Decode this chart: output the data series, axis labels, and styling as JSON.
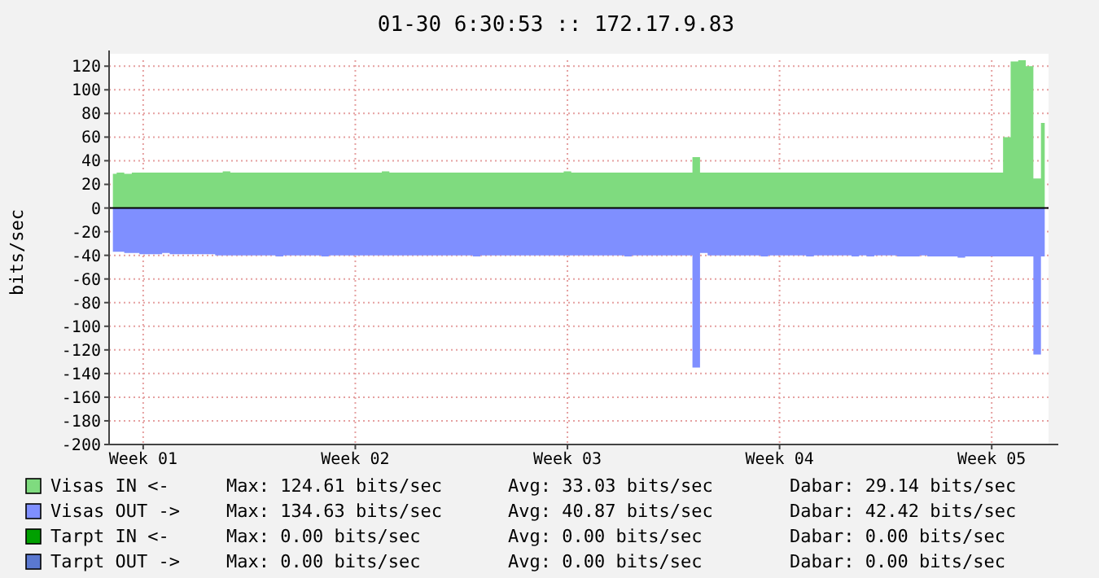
{
  "chart_data": {
    "type": "area",
    "title": "01-30 6:30:53 :: 172.17.9.83",
    "ylabel": "bits/sec",
    "categories": [
      null,
      null,
      null,
      null,
      "Week 01",
      null,
      null,
      null,
      null,
      null,
      null,
      null,
      null,
      null,
      null,
      null,
      null,
      null,
      null,
      null,
      null,
      null,
      null,
      null,
      null,
      null,
      null,
      null,
      null,
      null,
      null,
      null,
      "Week 02",
      null,
      null,
      null,
      null,
      null,
      null,
      null,
      null,
      null,
      null,
      null,
      null,
      null,
      null,
      null,
      null,
      null,
      null,
      null,
      null,
      null,
      null,
      null,
      null,
      null,
      null,
      null,
      "Week 03",
      null,
      null,
      null,
      null,
      null,
      null,
      null,
      null,
      null,
      null,
      null,
      null,
      null,
      null,
      null,
      null,
      null,
      null,
      null,
      null,
      null,
      null,
      null,
      null,
      null,
      null,
      null,
      "Week 04",
      null,
      null,
      null,
      null,
      null,
      null,
      null,
      null,
      null,
      null,
      null,
      null,
      null,
      null,
      null,
      null,
      null,
      null,
      null,
      null,
      null,
      null,
      null,
      null,
      null,
      null,
      null,
      "Week 05",
      null,
      null,
      null,
      null,
      null,
      null,
      null
    ],
    "ylim": [
      -200,
      125
    ],
    "yticks": [
      -200,
      -180,
      -160,
      -140,
      -120,
      -100,
      -80,
      -60,
      -40,
      -20,
      0,
      20,
      40,
      60,
      80,
      100,
      120
    ],
    "grid": true,
    "legend": "bottom",
    "ref_lines": [
      {
        "axis": "y",
        "value": 0,
        "color": "#000000"
      }
    ],
    "series": [
      {
        "name": "Visas IN <-",
        "color": "#7fdb7f",
        "values": [
          29,
          30,
          29,
          30,
          30,
          30,
          30,
          30,
          30,
          30,
          30,
          30,
          30,
          30,
          30,
          31,
          30,
          30,
          30,
          30,
          30,
          30,
          30,
          30,
          30,
          30,
          30,
          30,
          30,
          30,
          30,
          30,
          30,
          30,
          30,
          30,
          31,
          30,
          30,
          30,
          30,
          30,
          30,
          30,
          30,
          30,
          30,
          30,
          30,
          30,
          30,
          30,
          30,
          30,
          30,
          30,
          30,
          30,
          30,
          30,
          31,
          30,
          30,
          30,
          30,
          30,
          30,
          30,
          30,
          30,
          30,
          30,
          30,
          30,
          30,
          30,
          30,
          43,
          30,
          30,
          30,
          30,
          30,
          30,
          30,
          30,
          30,
          30,
          30,
          30,
          30,
          30,
          30,
          30,
          30,
          30,
          30,
          30,
          30,
          30,
          30,
          30,
          30,
          30,
          30,
          30,
          30,
          30,
          30,
          30,
          30,
          30,
          30,
          30,
          30,
          30,
          30,
          30,
          60,
          124,
          125,
          120,
          25,
          72
        ]
      },
      {
        "name": "Visas OUT ->",
        "color": "#7f8fff",
        "values": [
          -37,
          -37,
          -38,
          -38,
          -39,
          -39,
          -39,
          -38,
          -39,
          -39,
          -39,
          -39,
          -39,
          -39,
          -40,
          -40,
          -40,
          -40,
          -40,
          -40,
          -40,
          -40,
          -41,
          -40,
          -40,
          -40,
          -40,
          -40,
          -41,
          -40,
          -40,
          -40,
          -40,
          -40,
          -40,
          -40,
          -40,
          -40,
          -40,
          -40,
          -40,
          -40,
          -40,
          -40,
          -40,
          -40,
          -40,
          -40,
          -41,
          -40,
          -40,
          -40,
          -40,
          -40,
          -40,
          -40,
          -40,
          -40,
          -40,
          -40,
          -40,
          -40,
          -40,
          -40,
          -40,
          -40,
          -40,
          -40,
          -41,
          -40,
          -40,
          -40,
          -40,
          -40,
          -40,
          -40,
          -40,
          -135,
          -38,
          -40,
          -40,
          -40,
          -40,
          -40,
          -40,
          -40,
          -41,
          -40,
          -40,
          -40,
          -40,
          -40,
          -41,
          -40,
          -40,
          -40,
          -40,
          -40,
          -41,
          -40,
          -41,
          -40,
          -40,
          -40,
          -41,
          -41,
          -41,
          -40,
          -41,
          -41,
          -41,
          -41,
          -42,
          -41,
          -41,
          -41,
          -41,
          -41,
          -41,
          -41,
          -41,
          -41,
          -124,
          -41
        ]
      },
      {
        "name": "Tarpt IN <-",
        "color": "#00a000",
        "values": [
          null,
          null,
          null,
          null,
          null,
          null,
          null,
          null,
          null,
          null,
          null,
          null,
          null,
          null,
          null,
          null,
          null,
          null,
          null,
          null,
          null,
          null,
          null,
          null,
          null,
          null,
          null,
          null,
          null,
          null,
          null,
          null,
          null,
          null,
          null,
          null,
          null,
          null,
          null,
          null,
          null,
          null,
          null,
          null,
          null,
          null,
          null,
          null,
          null,
          null,
          null,
          null,
          null,
          null,
          null,
          null,
          null,
          null,
          null,
          null,
          null,
          null,
          null,
          null,
          null,
          null,
          null,
          null,
          null,
          null,
          null,
          null,
          null,
          null,
          null,
          null,
          null,
          null,
          null,
          null,
          null,
          null,
          null,
          null,
          null,
          null,
          null,
          null,
          null,
          null,
          null,
          null,
          null,
          null,
          null,
          null,
          null,
          null,
          null,
          null,
          null,
          null,
          null,
          null,
          null,
          null,
          null,
          null,
          null,
          null,
          null,
          null,
          null,
          null,
          null,
          null,
          null,
          null,
          null,
          null,
          null,
          null,
          null,
          null
        ]
      },
      {
        "name": "Tarpt OUT ->",
        "color": "#5a78d0",
        "values": [
          null,
          null,
          null,
          null,
          null,
          null,
          null,
          null,
          null,
          null,
          null,
          null,
          null,
          null,
          null,
          null,
          null,
          null,
          null,
          null,
          null,
          null,
          null,
          null,
          null,
          null,
          null,
          null,
          null,
          null,
          null,
          null,
          null,
          null,
          null,
          null,
          null,
          null,
          null,
          null,
          null,
          null,
          null,
          null,
          null,
          null,
          null,
          null,
          null,
          null,
          null,
          null,
          null,
          null,
          null,
          null,
          null,
          null,
          null,
          null,
          null,
          null,
          null,
          null,
          null,
          null,
          null,
          null,
          null,
          null,
          null,
          null,
          null,
          null,
          null,
          null,
          null,
          null,
          null,
          null,
          null,
          null,
          null,
          null,
          null,
          null,
          null,
          null,
          null,
          null,
          null,
          null,
          null,
          null,
          null,
          null,
          null,
          null,
          null,
          null,
          null,
          null,
          null,
          null,
          null,
          null,
          null,
          null,
          null,
          null,
          null,
          null,
          null,
          null,
          null,
          null,
          null,
          null,
          null,
          null,
          null,
          null,
          null,
          null
        ]
      }
    ],
    "annotations": [
      "Max: 124.61 bits/sec",
      "Avg: 33.03 bits/sec",
      "Dabar: 29.14 bits/sec",
      "Max: 134.63 bits/sec",
      "Avg: 40.87 bits/sec",
      "Dabar: 42.42 bits/sec",
      "Max: 0.00 bits/sec",
      "Avg: 0.00 bits/sec",
      "Dabar: 0.00 bits/sec",
      "Max: 0.00 bits/sec",
      "Avg: 0.00 bits/sec",
      "Dabar: 0.00 bits/sec"
    ]
  }
}
